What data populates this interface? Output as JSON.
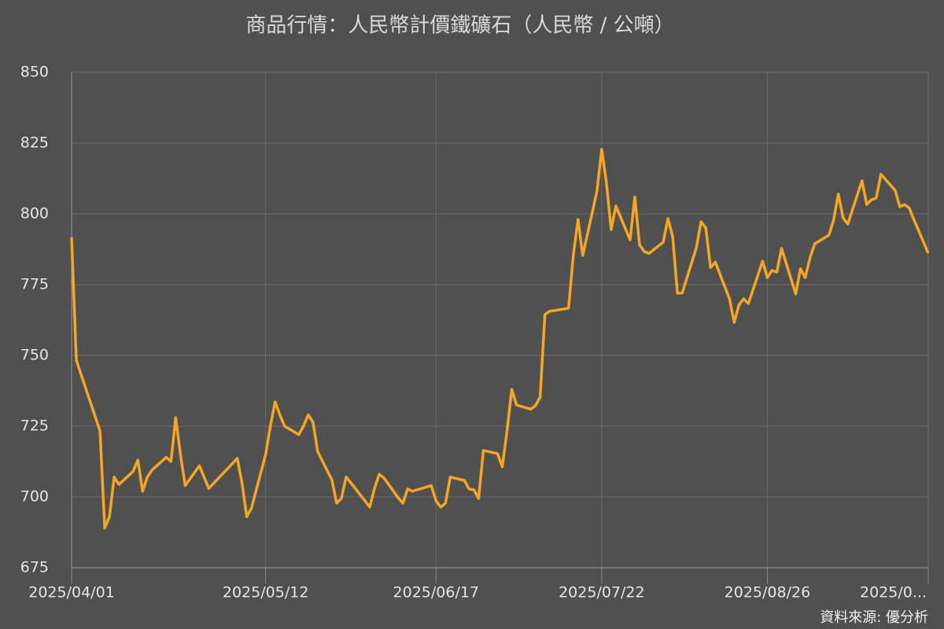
{
  "chart_data": {
    "type": "line",
    "title": "商品行情：人民幣計價鐵礦石（人民幣 / 公噸）",
    "source": "資料來源: 優分析",
    "color": "#f5a623",
    "grid": true,
    "x": [
      "2025/04/01",
      "2025/04/02",
      "2025/04/07",
      "2025/04/08",
      "2025/04/09",
      "2025/04/10",
      "2025/04/11",
      "2025/04/14",
      "2025/04/15",
      "2025/04/16",
      "2025/04/17",
      "2025/04/18",
      "2025/04/21",
      "2025/04/22",
      "2025/04/23",
      "2025/04/24",
      "2025/04/25",
      "2025/04/28",
      "2025/04/29",
      "2025/04/30",
      "2025/05/06",
      "2025/05/07",
      "2025/05/08",
      "2025/05/09",
      "2025/05/12",
      "2025/05/13",
      "2025/05/14",
      "2025/05/15",
      "2025/05/16",
      "2025/05/19",
      "2025/05/20",
      "2025/05/21",
      "2025/05/22",
      "2025/05/23",
      "2025/05/26",
      "2025/05/27",
      "2025/05/28",
      "2025/05/29",
      "2025/05/30",
      "2025/06/03",
      "2025/06/04",
      "2025/06/05",
      "2025/06/06",
      "2025/06/09",
      "2025/06/10",
      "2025/06/11",
      "2025/06/12",
      "2025/06/13",
      "2025/06/16",
      "2025/06/17",
      "2025/06/18",
      "2025/06/19",
      "2025/06/20",
      "2025/06/23",
      "2025/06/24",
      "2025/06/25",
      "2025/06/26",
      "2025/06/27",
      "2025/06/30",
      "2025/07/01",
      "2025/07/02",
      "2025/07/03",
      "2025/07/04",
      "2025/07/07",
      "2025/07/08",
      "2025/07/09",
      "2025/07/10",
      "2025/07/11",
      "2025/07/14",
      "2025/07/15",
      "2025/07/16",
      "2025/07/17",
      "2025/07/18",
      "2025/07/21",
      "2025/07/22",
      "2025/07/23",
      "2025/07/24",
      "2025/07/25",
      "2025/07/28",
      "2025/07/29",
      "2025/07/30",
      "2025/07/31",
      "2025/08/01",
      "2025/08/04",
      "2025/08/05",
      "2025/08/06",
      "2025/08/07",
      "2025/08/08",
      "2025/08/11",
      "2025/08/12",
      "2025/08/13",
      "2025/08/14",
      "2025/08/15",
      "2025/08/18",
      "2025/08/19",
      "2025/08/20",
      "2025/08/21",
      "2025/08/22",
      "2025/08/25",
      "2025/08/26",
      "2025/08/27",
      "2025/08/28",
      "2025/08/29",
      "2025/09/01",
      "2025/09/02",
      "2025/09/03",
      "2025/09/04",
      "2025/09/05",
      "2025/09/08",
      "2025/09/09",
      "2025/09/10",
      "2025/09/11",
      "2025/09/12",
      "2025/09/15",
      "2025/09/16",
      "2025/09/17",
      "2025/09/18",
      "2025/09/19",
      "2025/09/22",
      "2025/09/23",
      "2025/09/24",
      "2025/09/25",
      "2025/09/26",
      "2025/09/29"
    ],
    "values": [
      791.7,
      748.3,
      723.3,
      689,
      693,
      707,
      704.4,
      709,
      713,
      702,
      707,
      709.5,
      714,
      712.5,
      728,
      715,
      704,
      711,
      707,
      703,
      713.6,
      705,
      693,
      696,
      715,
      725,
      733.6,
      729,
      725,
      722,
      725,
      729,
      726.4,
      716,
      706,
      697.8,
      699.4,
      707,
      705,
      696.4,
      703,
      708,
      706.7,
      699.7,
      697.8,
      702.8,
      702,
      702.5,
      704,
      698.6,
      696.4,
      697.8,
      707,
      705.8,
      702.8,
      702.5,
      699.4,
      716.4,
      715.3,
      710.6,
      723.3,
      738,
      732.5,
      731,
      732.2,
      735.3,
      764.4,
      765.6,
      766.4,
      766.7,
      785.3,
      798,
      785.3,
      808,
      822.8,
      811,
      794.4,
      802.8,
      790.8,
      806,
      789,
      786.7,
      786,
      790,
      798.3,
      792,
      772,
      772,
      788,
      797.2,
      795,
      781,
      783,
      770,
      761.7,
      767.8,
      770,
      768.3,
      783.3,
      777.5,
      780,
      779.4,
      787.8,
      771.7,
      780.6,
      777.5,
      784.4,
      789.4,
      792.5,
      797.8,
      807,
      798.6,
      796.4,
      811.7,
      803.3,
      805,
      805.6,
      814,
      808.3,
      802.5,
      803.3,
      802,
      797.8,
      786.1
    ],
    "xlim": [
      "2025/04/01",
      "2025/09/29"
    ],
    "xticks": [
      "2025/04/01",
      "2025/05/12",
      "2025/06/17",
      "2025/07/22",
      "2025/08/26",
      {
        "value": "2025/09/29",
        "label": "2025/0..."
      }
    ],
    "ylim": [
      675,
      850
    ],
    "yticks": [
      675,
      700,
      725,
      750,
      775,
      800,
      825,
      850
    ]
  }
}
